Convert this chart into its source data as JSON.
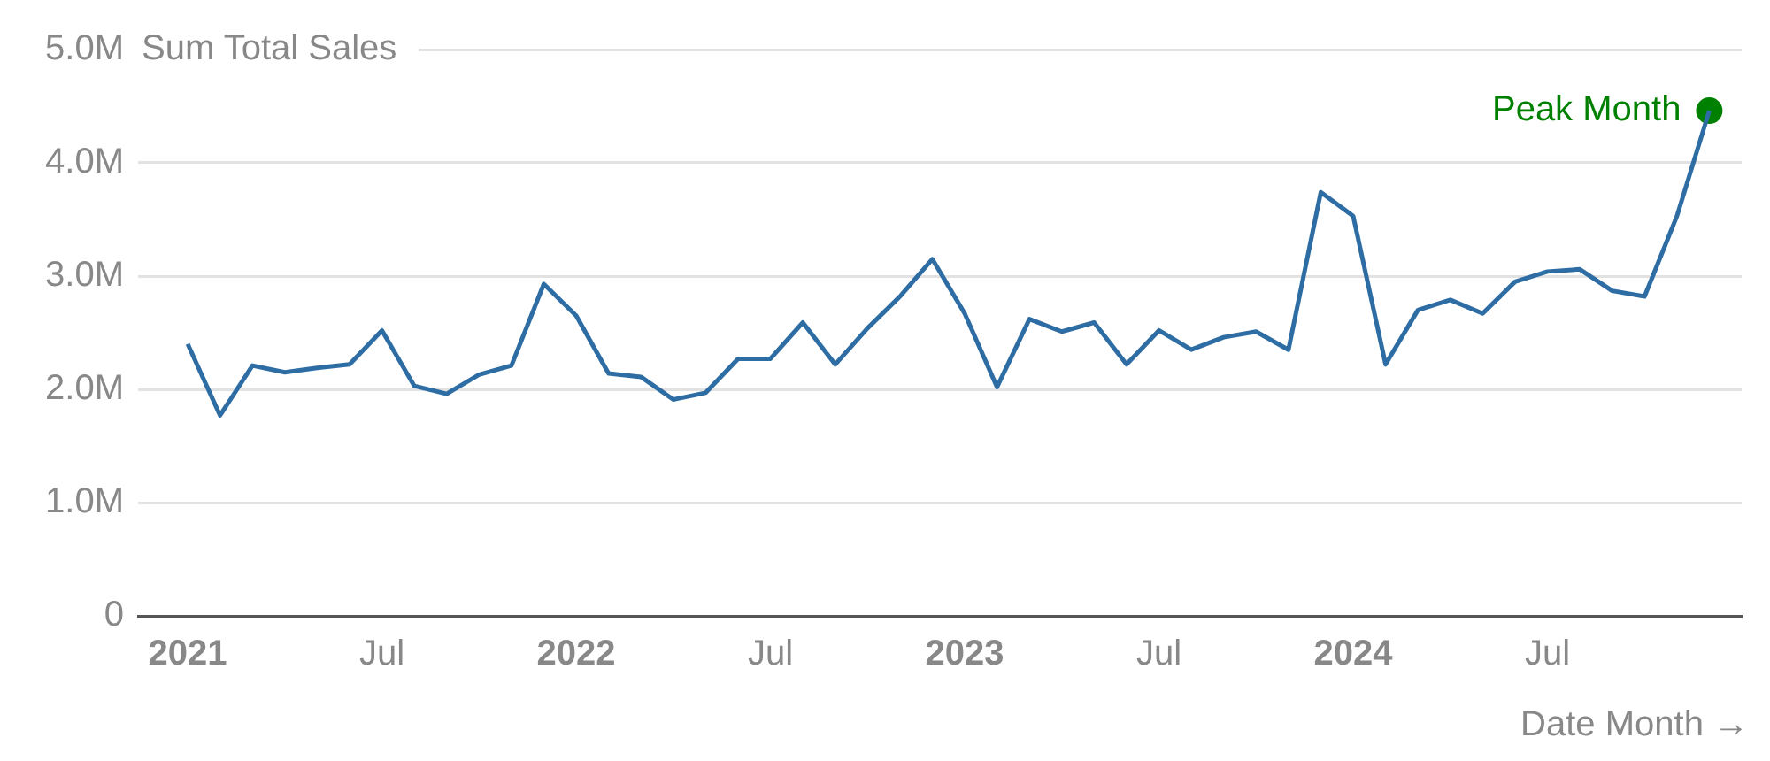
{
  "chart_data": {
    "type": "line",
    "ylabel": "Sum Total Sales",
    "xlabel": "Date Month →",
    "x": [
      "2021-01",
      "2021-02",
      "2021-03",
      "2021-04",
      "2021-05",
      "2021-06",
      "2021-07",
      "2021-08",
      "2021-09",
      "2021-10",
      "2021-11",
      "2021-12",
      "2022-01",
      "2022-02",
      "2022-03",
      "2022-04",
      "2022-05",
      "2022-06",
      "2022-07",
      "2022-08",
      "2022-09",
      "2022-10",
      "2022-11",
      "2022-12",
      "2023-01",
      "2023-02",
      "2023-03",
      "2023-04",
      "2023-05",
      "2023-06",
      "2023-07",
      "2023-08",
      "2023-09",
      "2023-10",
      "2023-11",
      "2023-12",
      "2024-01",
      "2024-02",
      "2024-03",
      "2024-04",
      "2024-05",
      "2024-06",
      "2024-07",
      "2024-08",
      "2024-09",
      "2024-10",
      "2024-11",
      "2024-12"
    ],
    "series": [
      {
        "color": "#2e6da4",
        "marker": "none",
        "values": [
          2.4,
          1.77,
          2.21,
          2.15,
          2.19,
          2.22,
          2.52,
          2.03,
          1.96,
          2.13,
          2.21,
          2.93,
          2.65,
          2.14,
          2.11,
          1.91,
          1.97,
          2.27,
          2.27,
          2.59,
          2.22,
          2.54,
          2.82,
          3.15,
          2.67,
          2.02,
          2.62,
          2.51,
          2.59,
          2.22,
          2.52,
          2.35,
          2.46,
          2.51,
          2.35,
          3.74,
          3.53,
          2.22,
          2.7,
          2.79,
          2.67,
          2.95,
          3.04,
          3.06,
          2.87,
          2.82,
          3.53,
          4.46
        ]
      },
      {
        "type": "scatter",
        "name": "Peak Month",
        "color": "#008000",
        "marker": "circle",
        "x": [
          "2024-12"
        ],
        "values": [
          4.46
        ]
      }
    ],
    "xlim": [
      "2020-11-15",
      "2025-01-01"
    ],
    "xticks": [
      {
        "value": "2021-01",
        "label": "2021"
      },
      {
        "value": "2021-07",
        "label": "Jul"
      },
      {
        "value": "2022-01",
        "label": "2022"
      },
      {
        "value": "2022-07",
        "label": "Jul"
      },
      {
        "value": "2023-01",
        "label": "2023"
      },
      {
        "value": "2023-07",
        "label": "Jul"
      },
      {
        "value": "2024-01",
        "label": "2024"
      },
      {
        "value": "2024-07",
        "label": "Jul"
      }
    ],
    "ylim": [
      0,
      5
    ],
    "yticks": [
      0,
      {
        "value": 1,
        "label": "1.0M"
      },
      {
        "value": 2,
        "label": "2.0M"
      },
      {
        "value": 3,
        "label": "3.0M"
      },
      {
        "value": 4,
        "label": "4.0M"
      },
      {
        "value": 5,
        "label": "5.0M"
      }
    ],
    "grid": "y",
    "legend": false
  }
}
